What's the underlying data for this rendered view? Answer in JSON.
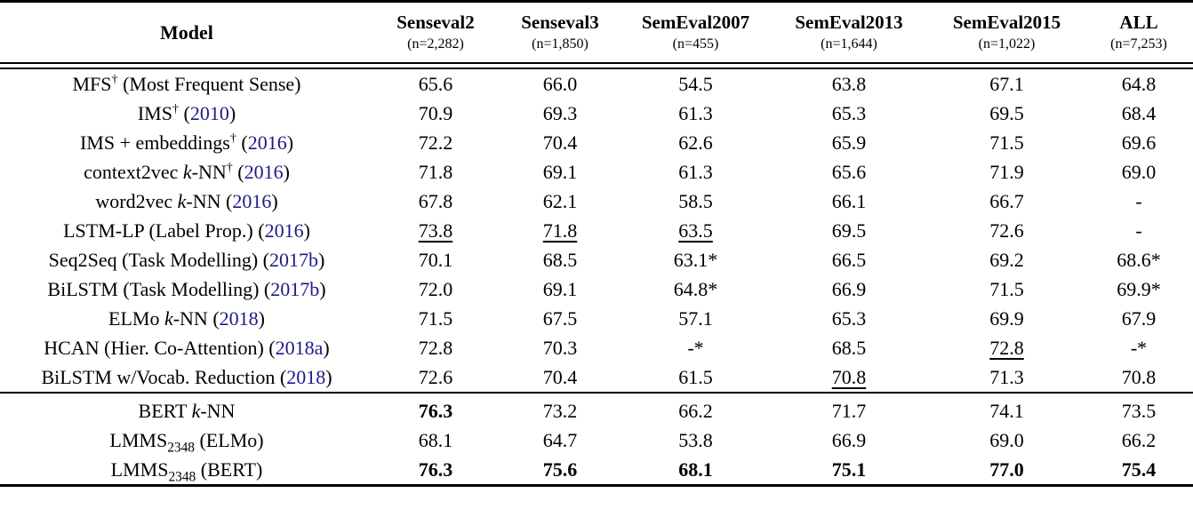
{
  "colors": {
    "citation_link": "#1b1b87",
    "text": "#000000",
    "background": "#ffffff"
  },
  "table": {
    "model_header": "Model",
    "columns": [
      {
        "label": "Senseval2",
        "n": "(n=2,282)"
      },
      {
        "label": "Senseval3",
        "n": "(n=1,850)"
      },
      {
        "label": "SemEval2007",
        "n": "(n=455)"
      },
      {
        "label": "SemEval2013",
        "n": "(n=1,644)"
      },
      {
        "label": "SemEval2015",
        "n": "(n=1,022)"
      },
      {
        "label": "ALL",
        "n": "(n=7,253)"
      }
    ],
    "groups": [
      {
        "rows": [
          {
            "model": [
              {
                "t": "MFS"
              },
              {
                "t": "†",
                "s": "sup"
              },
              {
                "t": " (Most Frequent Sense)"
              }
            ],
            "values": [
              "65.6",
              "66.0",
              "54.5",
              "63.8",
              "67.1",
              "64.8"
            ]
          },
          {
            "model": [
              {
                "t": "IMS"
              },
              {
                "t": "†",
                "s": "sup"
              },
              {
                "t": " ("
              },
              {
                "t": "2010",
                "s": "cite"
              },
              {
                "t": ")"
              }
            ],
            "values": [
              "70.9",
              "69.3",
              "61.3",
              "65.3",
              "69.5",
              "68.4"
            ]
          },
          {
            "model": [
              {
                "t": "IMS + embeddings"
              },
              {
                "t": "†",
                "s": "sup"
              },
              {
                "t": " ("
              },
              {
                "t": "2016",
                "s": "cite"
              },
              {
                "t": ")"
              }
            ],
            "values": [
              "72.2",
              "70.4",
              "62.6",
              "65.9",
              "71.5",
              "69.6"
            ]
          },
          {
            "model": [
              {
                "t": "context2vec "
              },
              {
                "t": "k",
                "s": "i"
              },
              {
                "t": "-NN"
              },
              {
                "t": "†",
                "s": "sup"
              },
              {
                "t": " ("
              },
              {
                "t": "2016",
                "s": "cite"
              },
              {
                "t": ")"
              }
            ],
            "values": [
              "71.8",
              "69.1",
              "61.3",
              "65.6",
              "71.9",
              "69.0"
            ]
          },
          {
            "model": [
              {
                "t": "word2vec "
              },
              {
                "t": "k",
                "s": "i"
              },
              {
                "t": "-NN ("
              },
              {
                "t": "2016",
                "s": "cite"
              },
              {
                "t": ")"
              }
            ],
            "values": [
              "67.8",
              "62.1",
              "58.5",
              "66.1",
              "66.7",
              "-"
            ]
          },
          {
            "model": [
              {
                "t": "LSTM-LP (Label Prop.) ("
              },
              {
                "t": "2016",
                "s": "cite"
              },
              {
                "t": ")"
              }
            ],
            "values": [
              {
                "v": "73.8",
                "u": true
              },
              {
                "v": "71.8",
                "u": true
              },
              {
                "v": "63.5",
                "u": true
              },
              "69.5",
              "72.6",
              "-"
            ]
          },
          {
            "model": [
              {
                "t": "Seq2Seq (Task Modelling) ("
              },
              {
                "t": "2017b",
                "s": "cite"
              },
              {
                "t": ")"
              }
            ],
            "values": [
              "70.1",
              "68.5",
              "63.1*",
              "66.5",
              "69.2",
              "68.6*"
            ]
          },
          {
            "model": [
              {
                "t": "BiLSTM (Task Modelling) ("
              },
              {
                "t": "2017b",
                "s": "cite"
              },
              {
                "t": ")"
              }
            ],
            "values": [
              "72.0",
              "69.1",
              "64.8*",
              "66.9",
              "71.5",
              "69.9*"
            ]
          },
          {
            "model": [
              {
                "t": "ELMo "
              },
              {
                "t": "k",
                "s": "i"
              },
              {
                "t": "-NN ("
              },
              {
                "t": "2018",
                "s": "cite"
              },
              {
                "t": ")"
              }
            ],
            "values": [
              "71.5",
              "67.5",
              "57.1",
              "65.3",
              "69.9",
              "67.9"
            ]
          },
          {
            "model": [
              {
                "t": "HCAN (Hier. Co-Attention) ("
              },
              {
                "t": "2018a",
                "s": "cite"
              },
              {
                "t": ")"
              }
            ],
            "values": [
              "72.8",
              "70.3",
              "-*",
              "68.5",
              {
                "v": "72.8",
                "u": true
              },
              "-*"
            ]
          },
          {
            "model": [
              {
                "t": "BiLSTM w/Vocab. Reduction ("
              },
              {
                "t": "2018",
                "s": "cite"
              },
              {
                "t": ")"
              }
            ],
            "values": [
              "72.6",
              "70.4",
              "61.5",
              {
                "v": "70.8",
                "u": true
              },
              "71.3",
              "70.8"
            ]
          }
        ]
      },
      {
        "rows": [
          {
            "model": [
              {
                "t": "BERT "
              },
              {
                "t": "k",
                "s": "i"
              },
              {
                "t": "-NN"
              }
            ],
            "values": [
              {
                "v": "76.3",
                "b": true
              },
              "73.2",
              "66.2",
              "71.7",
              "74.1",
              "73.5"
            ]
          },
          {
            "model": [
              {
                "t": "LMMS"
              },
              {
                "t": "2348",
                "s": "sub"
              },
              {
                "t": " (ELMo)"
              }
            ],
            "values": [
              "68.1",
              "64.7",
              "53.8",
              "66.9",
              "69.0",
              "66.2"
            ]
          },
          {
            "model": [
              {
                "t": "LMMS"
              },
              {
                "t": "2348",
                "s": "sub"
              },
              {
                "t": " (BERT)"
              }
            ],
            "values": [
              {
                "v": "76.3",
                "b": true
              },
              {
                "v": "75.6",
                "b": true
              },
              {
                "v": "68.1",
                "b": true
              },
              {
                "v": "75.1",
                "b": true
              },
              {
                "v": "77.0",
                "b": true
              },
              {
                "v": "75.4",
                "b": true
              }
            ]
          }
        ]
      }
    ]
  }
}
